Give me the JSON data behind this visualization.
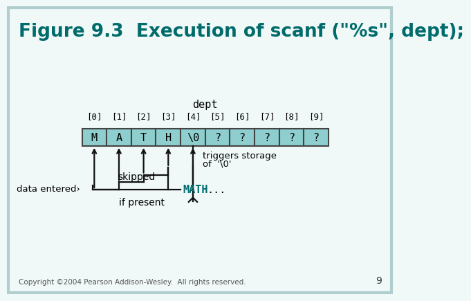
{
  "title": "Figure 9.3  Execution of scanf (\"%s\", dept);",
  "title_color": "#006b6b",
  "title_fontsize": 19,
  "bg_color": "#f0f8f8",
  "border_color": "#b0cece",
  "cell_bg": "#8ecece",
  "cell_border": "#444444",
  "cell_values": [
    "M",
    "A",
    "T",
    "H",
    "\\0",
    "?",
    "?",
    "?",
    "?",
    "?"
  ],
  "indices": [
    "[0]",
    "[1]",
    "[2]",
    "[3]",
    "[4]",
    "[5]",
    "[6]",
    "[7]",
    "[8]",
    "[9]"
  ],
  "array_label": "dept",
  "copyright": "Copyright ©2004 Pearson Addison-Wesley.  All rights reserved.",
  "page_num": "9",
  "math_color": "#006b6b",
  "font_mono": "monospace",
  "arrow_color": "#111111",
  "line_color": "#111111"
}
